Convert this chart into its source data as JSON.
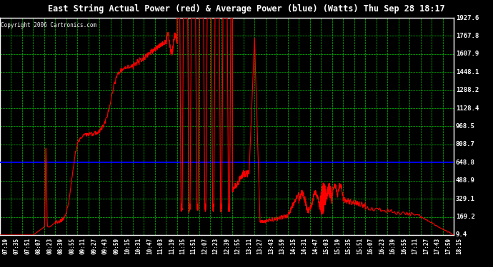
{
  "title": "East String Actual Power (red) & Average Power (blue) (Watts) Thu Sep 28 18:17",
  "copyright": "Copyright 2006 Cartronics.com",
  "bg_color": "#000000",
  "plot_bg_color": "#000000",
  "grid_color": "#00cc00",
  "title_color": "#ffffff",
  "copyright_color": "#ffffff",
  "y_ticks": [
    9.4,
    169.2,
    329.1,
    488.9,
    648.8,
    808.7,
    968.5,
    1128.4,
    1288.2,
    1448.1,
    1607.9,
    1767.8,
    1927.6
  ],
  "y_min": 9.4,
  "y_max": 1927.6,
  "avg_power": 648.8,
  "avg_color": "#0000ff",
  "line_color": "#ff0000",
  "x_labels": [
    "07:19",
    "07:35",
    "07:51",
    "08:07",
    "08:23",
    "08:39",
    "08:55",
    "09:11",
    "09:27",
    "09:43",
    "09:59",
    "10:15",
    "10:31",
    "10:47",
    "11:03",
    "11:19",
    "11:35",
    "11:51",
    "12:07",
    "12:23",
    "12:39",
    "12:55",
    "13:11",
    "13:27",
    "13:43",
    "13:59",
    "14:15",
    "14:31",
    "14:47",
    "15:03",
    "15:19",
    "15:35",
    "15:51",
    "16:07",
    "16:23",
    "16:39",
    "16:55",
    "17:11",
    "17:27",
    "17:43",
    "17:59",
    "18:15"
  ],
  "figsize": [
    6.9,
    3.75
  ],
  "dpi": 100
}
